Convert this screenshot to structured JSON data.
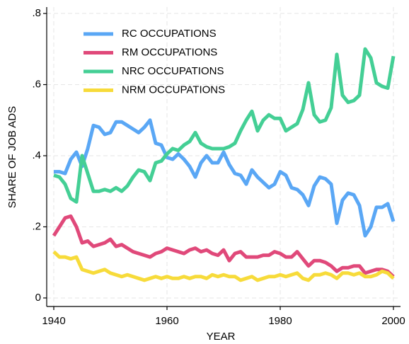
{
  "chart_data": {
    "type": "line",
    "x_label": "YEAR",
    "y_label": "SHARE OF JOB ADS",
    "x": [
      1940,
      1941,
      1942,
      1943,
      1944,
      1945,
      1946,
      1947,
      1948,
      1949,
      1950,
      1951,
      1952,
      1953,
      1954,
      1955,
      1956,
      1957,
      1958,
      1959,
      1960,
      1961,
      1962,
      1963,
      1964,
      1965,
      1966,
      1967,
      1968,
      1969,
      1970,
      1971,
      1972,
      1973,
      1974,
      1975,
      1976,
      1977,
      1978,
      1979,
      1980,
      1981,
      1982,
      1983,
      1984,
      1985,
      1986,
      1987,
      1988,
      1989,
      1990,
      1991,
      1992,
      1993,
      1994,
      1995,
      1996,
      1997,
      1998,
      1999,
      2000
    ],
    "series": [
      {
        "name": "RC OCCUPATIONS",
        "color": "#5aa7f5",
        "values": [
          0.355,
          0.355,
          0.35,
          0.39,
          0.41,
          0.37,
          0.42,
          0.485,
          0.48,
          0.46,
          0.465,
          0.495,
          0.495,
          0.485,
          0.475,
          0.465,
          0.48,
          0.5,
          0.435,
          0.43,
          0.395,
          0.39,
          0.405,
          0.39,
          0.37,
          0.34,
          0.38,
          0.4,
          0.38,
          0.38,
          0.41,
          0.375,
          0.35,
          0.345,
          0.32,
          0.36,
          0.34,
          0.325,
          0.31,
          0.32,
          0.355,
          0.345,
          0.31,
          0.305,
          0.29,
          0.26,
          0.315,
          0.34,
          0.335,
          0.32,
          0.21,
          0.275,
          0.295,
          0.29,
          0.26,
          0.175,
          0.2,
          0.255,
          0.255,
          0.265,
          0.215
        ]
      },
      {
        "name": "RM OCCUPATIONS",
        "color": "#e0497a",
        "values": [
          0.175,
          0.2,
          0.225,
          0.23,
          0.2,
          0.155,
          0.16,
          0.145,
          0.15,
          0.155,
          0.165,
          0.145,
          0.15,
          0.14,
          0.13,
          0.125,
          0.12,
          0.115,
          0.125,
          0.13,
          0.14,
          0.135,
          0.13,
          0.125,
          0.135,
          0.14,
          0.13,
          0.135,
          0.125,
          0.12,
          0.135,
          0.105,
          0.125,
          0.13,
          0.115,
          0.115,
          0.115,
          0.12,
          0.12,
          0.13,
          0.125,
          0.115,
          0.115,
          0.13,
          0.11,
          0.09,
          0.105,
          0.105,
          0.1,
          0.09,
          0.075,
          0.085,
          0.085,
          0.09,
          0.09,
          0.07,
          0.075,
          0.08,
          0.08,
          0.075,
          0.06
        ]
      },
      {
        "name": "NRC OCCUPATIONS",
        "color": "#44cf95",
        "values": [
          0.345,
          0.34,
          0.32,
          0.28,
          0.27,
          0.4,
          0.35,
          0.3,
          0.3,
          0.305,
          0.3,
          0.31,
          0.3,
          0.315,
          0.34,
          0.36,
          0.355,
          0.33,
          0.38,
          0.385,
          0.405,
          0.42,
          0.415,
          0.43,
          0.44,
          0.465,
          0.435,
          0.425,
          0.42,
          0.42,
          0.42,
          0.425,
          0.435,
          0.47,
          0.5,
          0.525,
          0.47,
          0.5,
          0.515,
          0.505,
          0.505,
          0.47,
          0.48,
          0.49,
          0.53,
          0.605,
          0.515,
          0.495,
          0.5,
          0.535,
          0.685,
          0.57,
          0.55,
          0.555,
          0.57,
          0.7,
          0.675,
          0.605,
          0.595,
          0.59,
          0.68
        ]
      },
      {
        "name": "NRM OCCUPATIONS",
        "color": "#f7db3a",
        "values": [
          0.13,
          0.115,
          0.115,
          0.11,
          0.115,
          0.08,
          0.075,
          0.07,
          0.075,
          0.08,
          0.07,
          0.065,
          0.06,
          0.065,
          0.06,
          0.055,
          0.05,
          0.055,
          0.06,
          0.055,
          0.06,
          0.055,
          0.055,
          0.06,
          0.055,
          0.06,
          0.06,
          0.055,
          0.065,
          0.06,
          0.065,
          0.06,
          0.06,
          0.05,
          0.055,
          0.06,
          0.05,
          0.055,
          0.06,
          0.06,
          0.065,
          0.06,
          0.065,
          0.07,
          0.055,
          0.05,
          0.065,
          0.065,
          0.07,
          0.065,
          0.055,
          0.07,
          0.07,
          0.065,
          0.07,
          0.06,
          0.06,
          0.065,
          0.075,
          0.07,
          0.055
        ]
      }
    ],
    "xlim": [
      1938.75,
      2001.25
    ],
    "xticks": [
      1940,
      1960,
      1980,
      2000
    ],
    "ylim": [
      -0.024,
      0.818
    ],
    "yticks": [
      0,
      {
        "value": 0.2,
        "label": ".2"
      },
      {
        "value": 0.4,
        "label": ".4"
      },
      {
        "value": 0.6,
        "label": ".6"
      },
      {
        "value": 0.8,
        "label": ".8"
      }
    ],
    "grid": true,
    "legend": "top-left"
  }
}
